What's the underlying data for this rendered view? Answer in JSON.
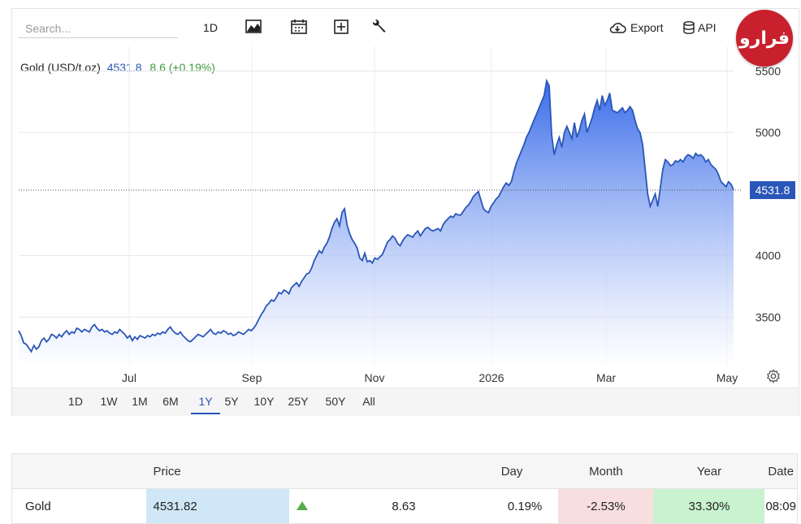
{
  "toolbar": {
    "search_placeholder": "Search...",
    "interval_label": "1D",
    "export_label": "Export",
    "api_label": "API"
  },
  "logo": {
    "text": "فرارو"
  },
  "legend": {
    "instrument": "Gold (USD/t.oz)",
    "price": "4531.8",
    "change": "8.6 (+0.19%)"
  },
  "chart_data": {
    "type": "area",
    "x_tick_labels": [
      "Jul",
      "Sep",
      "Nov",
      "2026",
      "Mar",
      "May"
    ],
    "y_tick_labels": [
      "5500",
      "5000",
      "4000",
      "3500"
    ],
    "ylim": [
      3100,
      5700
    ],
    "last_value_label": "4531.8",
    "last_value": 4531.8,
    "grid": true,
    "series": [
      {
        "values": [
          3390,
          3350,
          3290,
          3280,
          3250,
          3220,
          3270,
          3240,
          3260,
          3310,
          3330,
          3300,
          3320,
          3360,
          3350,
          3330,
          3360,
          3340,
          3370,
          3390,
          3360,
          3380,
          3370,
          3410,
          3400,
          3380,
          3400,
          3390,
          3380,
          3420,
          3440,
          3410,
          3390,
          3400,
          3380,
          3390,
          3370,
          3360,
          3380,
          3370,
          3400,
          3380,
          3360,
          3330,
          3350,
          3310,
          3340,
          3320,
          3350,
          3340,
          3330,
          3350,
          3340,
          3360,
          3350,
          3370,
          3360,
          3380,
          3370,
          3400,
          3420,
          3390,
          3370,
          3360,
          3380,
          3350,
          3330,
          3310,
          3300,
          3320,
          3340,
          3360,
          3350,
          3340,
          3360,
          3380,
          3400,
          3370,
          3360,
          3380,
          3370,
          3390,
          3380,
          3360,
          3370,
          3350,
          3360,
          3380,
          3370,
          3360,
          3380,
          3400,
          3390,
          3410,
          3440,
          3480,
          3520,
          3550,
          3590,
          3610,
          3640,
          3630,
          3660,
          3700,
          3690,
          3720,
          3710,
          3690,
          3740,
          3760,
          3780,
          3750,
          3790,
          3820,
          3850,
          3860,
          3900,
          3960,
          4000,
          4040,
          4020,
          4070,
          4100,
          4150,
          4220,
          4270,
          4300,
          4240,
          4350,
          4380,
          4250,
          4180,
          4130,
          4100,
          4060,
          3980,
          3960,
          4020,
          3950,
          3960,
          3940,
          3980,
          3970,
          3990,
          4010,
          4060,
          4110,
          4130,
          4160,
          4140,
          4100,
          4080,
          4120,
          4150,
          4170,
          4160,
          4150,
          4180,
          4200,
          4160,
          4190,
          4220,
          4230,
          4210,
          4200,
          4210,
          4220,
          4200,
          4250,
          4280,
          4300,
          4320,
          4310,
          4340,
          4330,
          4330,
          4360,
          4390,
          4410,
          4440,
          4480,
          4500,
          4520,
          4450,
          4380,
          4360,
          4350,
          4400,
          4430,
          4460,
          4480,
          4520,
          4560,
          4590,
          4570,
          4600,
          4680,
          4750,
          4800,
          4850,
          4900,
          4960,
          5000,
          5050,
          5100,
          5150,
          5200,
          5250,
          5300,
          5420,
          5380,
          4980,
          4820,
          4900,
          4960,
          4880,
          5000,
          5050,
          5000,
          4950,
          5080,
          4960,
          5020,
          5100,
          5150,
          5000,
          5060,
          5120,
          5200,
          5260,
          5180,
          5300,
          5220,
          5260,
          5320,
          5180,
          5170,
          5160,
          5180,
          5200,
          5160,
          5180,
          5210,
          5180,
          5100,
          5030,
          5000,
          4900,
          4700,
          4500,
          4400,
          4450,
          4500,
          4400,
          4550,
          4700,
          4780,
          4760,
          4730,
          4740,
          4770,
          4760,
          4780,
          4760,
          4800,
          4820,
          4810,
          4790,
          4830,
          4810,
          4820,
          4800,
          4760,
          4780,
          4740,
          4720,
          4700,
          4660,
          4600,
          4580,
          4560,
          4600,
          4580,
          4531.8
        ]
      }
    ]
  },
  "range_buttons": [
    "1D",
    "1W",
    "1M",
    "6M",
    "1Y",
    "5Y",
    "10Y",
    "25Y",
    "50Y",
    "All"
  ],
  "range_active": "1Y",
  "table": {
    "headers": {
      "name": "",
      "price": "Price",
      "day": "Day",
      "month": "Month",
      "year": "Year",
      "date": "Date"
    },
    "row": {
      "name": "Gold",
      "price": "4531.82",
      "day_change": "8.63",
      "day_pct": "0.19%",
      "month": "-2.53%",
      "year": "33.30%",
      "date": "08:09"
    }
  },
  "colors": {
    "line": "#2a56b8",
    "area_top": "#2e64e8",
    "area_bottom": "#ffffff",
    "positive": "#3c9a3c",
    "price_bg": "#cfe7f6",
    "month_bg": "#f8dede",
    "year_bg": "#c9f2cf",
    "logo_bg": "#c8202c"
  },
  "icons": {
    "chart_type": "area-chart-icon",
    "calendar": "calendar-icon",
    "add": "plus-box-icon",
    "settings_tool": "wrench-icon",
    "export": "cloud-download-icon",
    "api": "database-icon",
    "gear": "gear-icon",
    "up": "triangle-up-icon"
  }
}
